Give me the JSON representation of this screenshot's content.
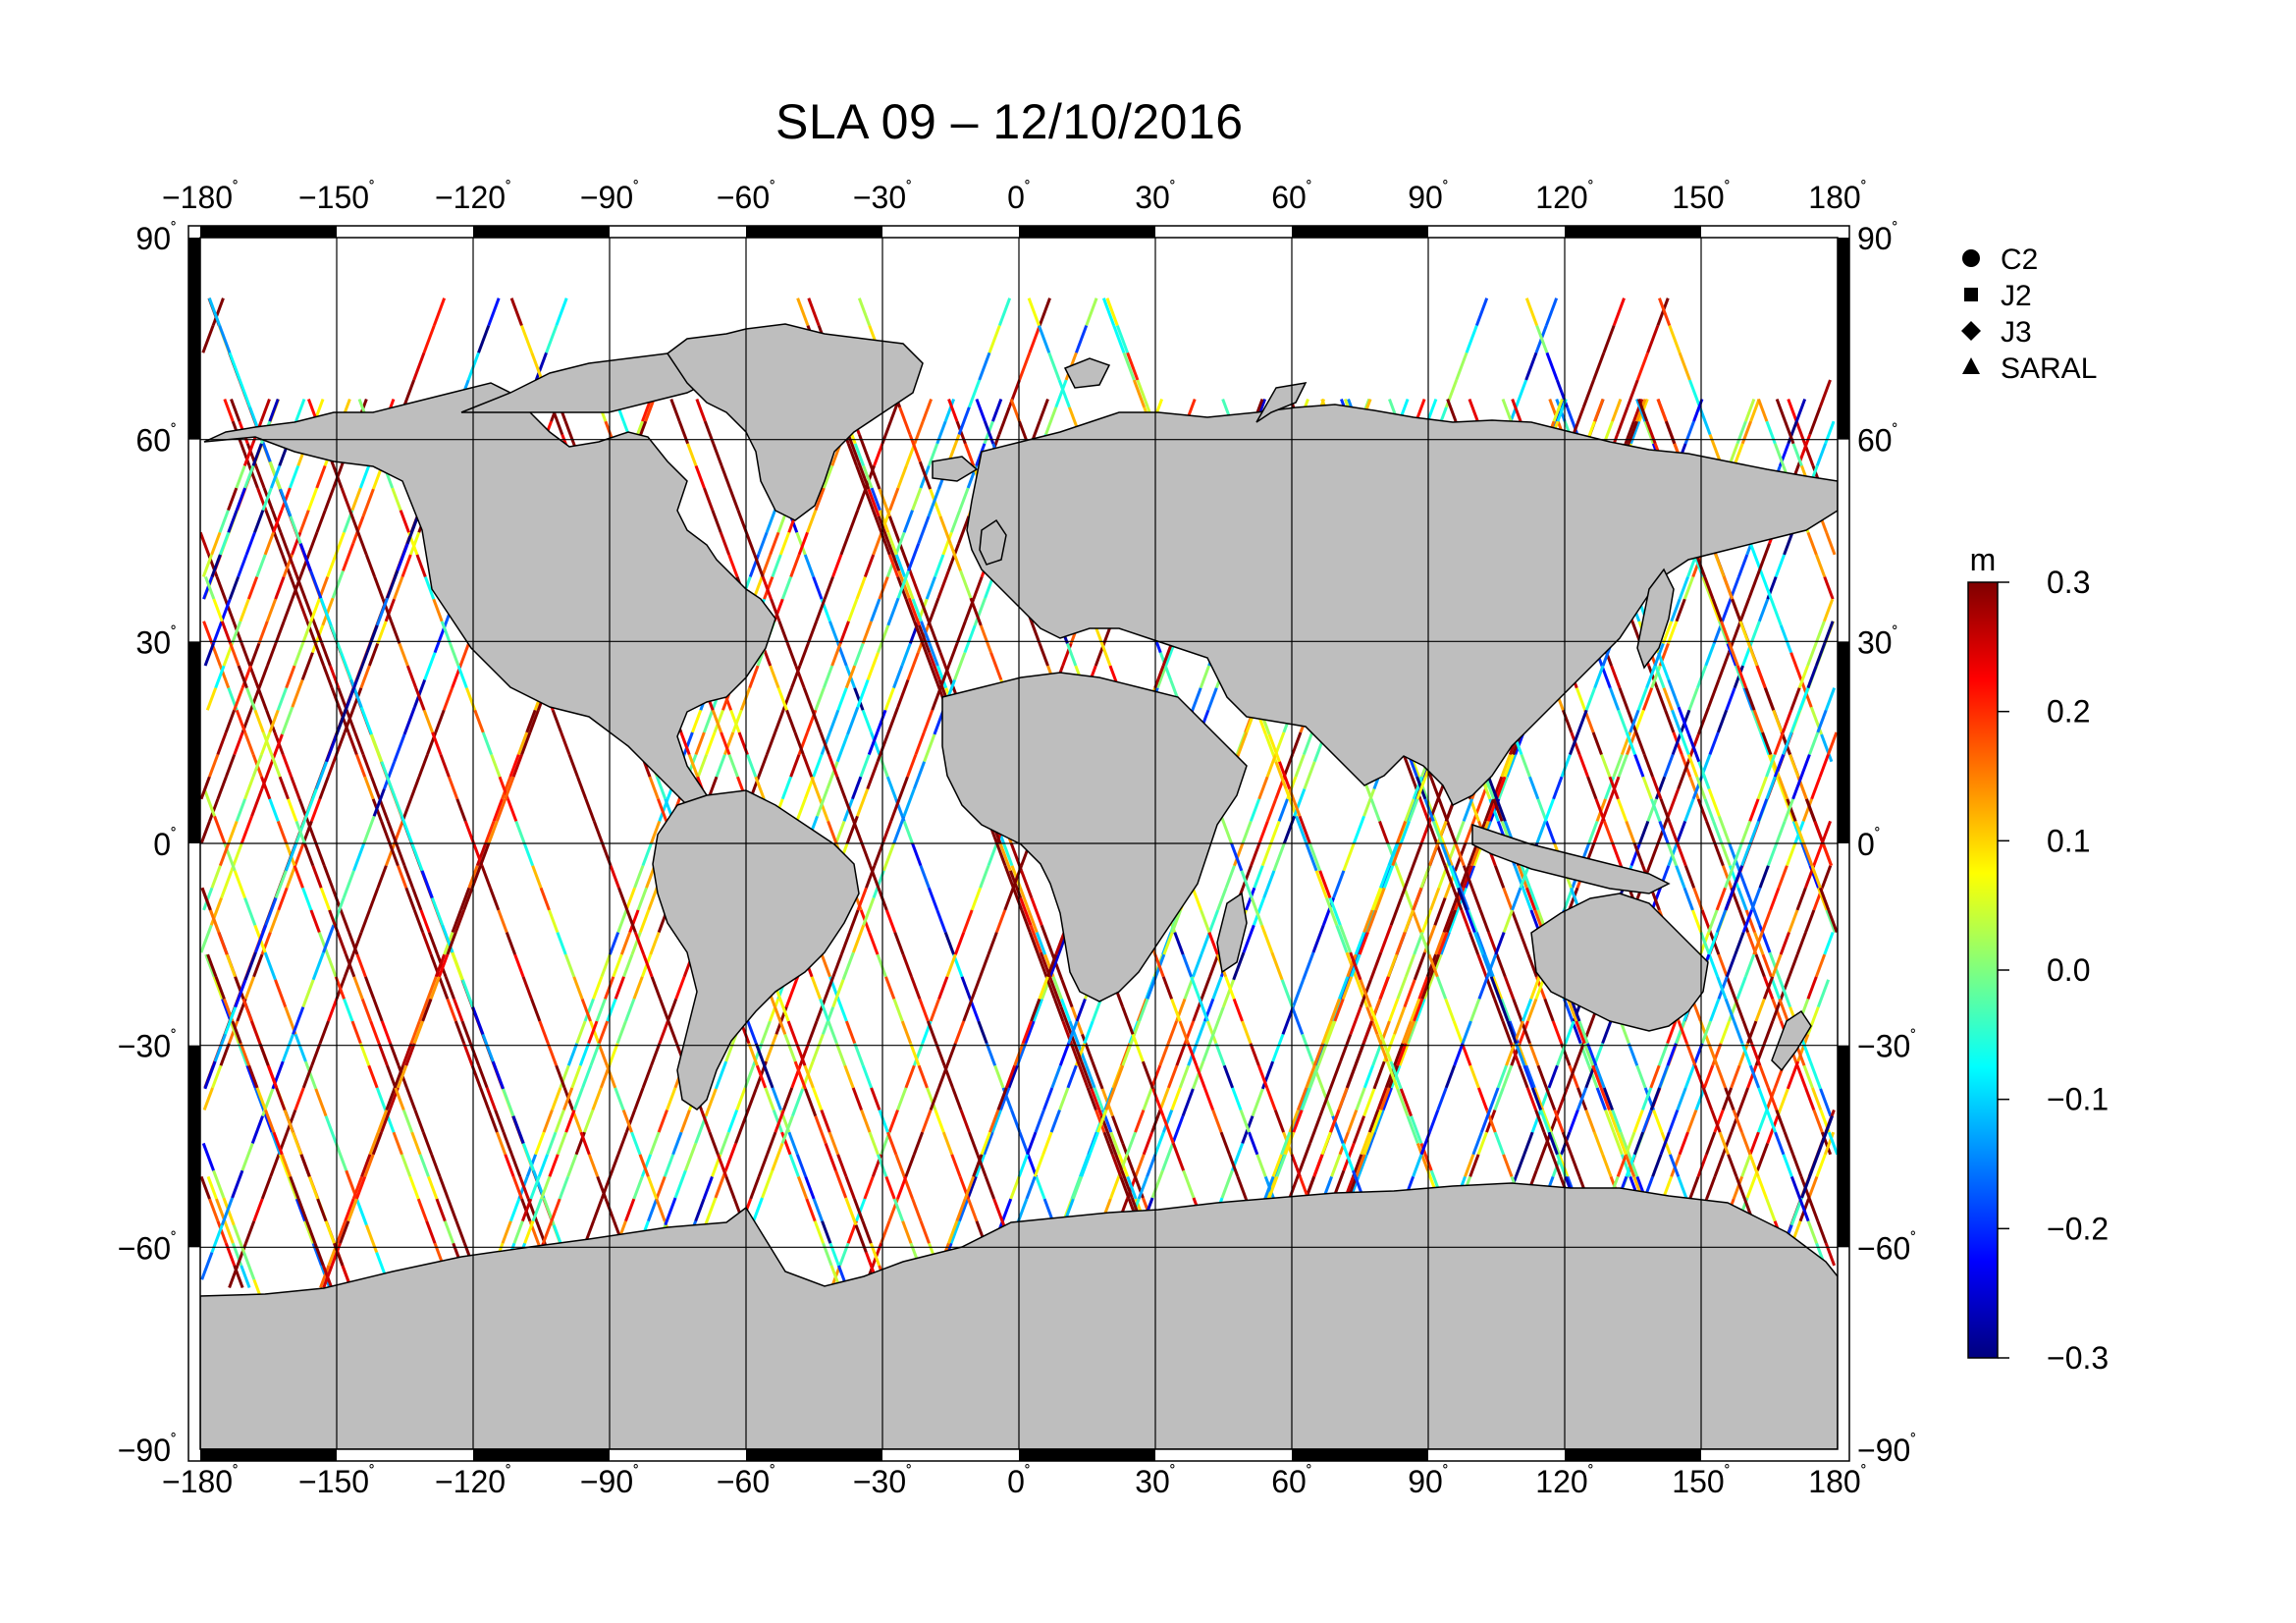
{
  "title": "SLA 09 – 12/10/2016",
  "map": {
    "lon_ticks": [
      "−180",
      "−150",
      "−120",
      "−90",
      "−60",
      "−30",
      "0",
      "30",
      "60",
      "90",
      "120",
      "150",
      "180"
    ],
    "lat_ticks": [
      "90",
      "60",
      "30",
      "0",
      "−30",
      "−60",
      "−90"
    ],
    "degree_symbol": "˚",
    "land_color": "#bebebe",
    "ocean_color": "#ffffff"
  },
  "legend": {
    "items": [
      {
        "label": "C2",
        "icon": "circle-icon"
      },
      {
        "label": "J2",
        "icon": "square-icon"
      },
      {
        "label": "J3",
        "icon": "diamond-icon"
      },
      {
        "label": "SARAL",
        "icon": "triangle-icon"
      }
    ]
  },
  "colorbar": {
    "unit": "m",
    "ticks": [
      "0.3",
      "0.2",
      "0.1",
      "0.0",
      "−0.1",
      "−0.2",
      "−0.3"
    ],
    "range": [
      -0.3,
      0.3
    ],
    "colormap": [
      "#00007f",
      "#0000ff",
      "#007fff",
      "#00ffff",
      "#7fff7f",
      "#ffff00",
      "#ff7f00",
      "#ff0000",
      "#7f0000"
    ]
  }
}
